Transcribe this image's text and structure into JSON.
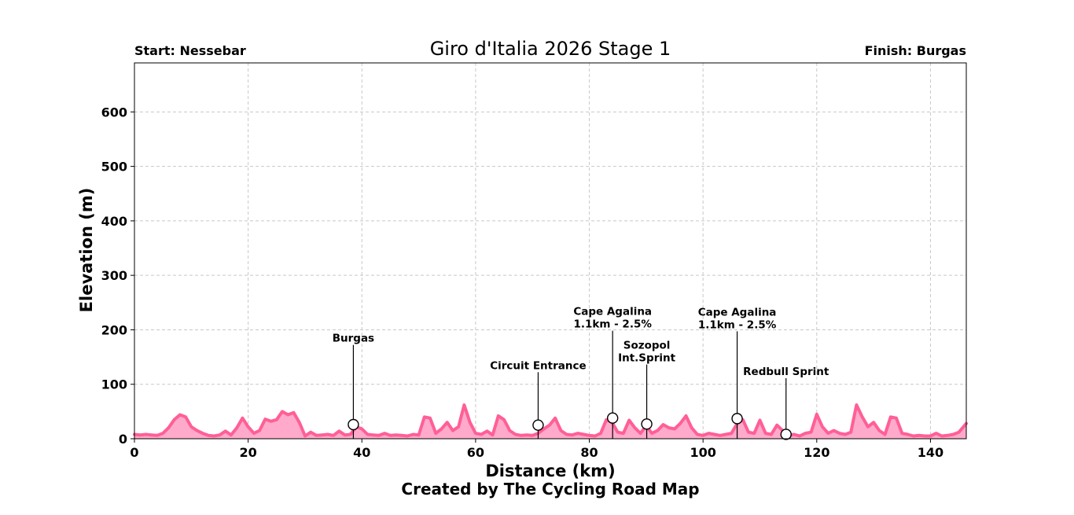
{
  "chart_data": {
    "type": "area",
    "title": "Giro d'Italia 2026 Stage 1",
    "start_label": "Start: Nessebar",
    "finish_label": "Finish: Burgas",
    "xlabel": "Distance (km)",
    "ylabel": "Elevation (m)",
    "credit": "Created by The Cycling Road Map",
    "xlim": [
      0,
      146.3
    ],
    "ylim": [
      0,
      690
    ],
    "xticks": [
      0,
      20,
      40,
      60,
      80,
      100,
      120,
      140
    ],
    "yticks": [
      0,
      100,
      200,
      300,
      400,
      500,
      600
    ],
    "grid": true,
    "colors": {
      "line": "#ff5f96",
      "fill": "#ffaacb"
    },
    "series": [
      {
        "x": [
          0,
          1,
          2,
          3,
          4,
          5,
          6,
          7,
          8,
          9,
          10,
          11,
          12,
          13,
          14,
          15,
          16,
          17,
          18,
          19,
          20,
          21,
          22,
          23,
          24,
          25,
          26,
          27,
          28,
          29,
          30,
          31,
          32,
          33,
          34,
          35,
          36,
          37,
          38,
          39,
          40,
          41,
          42,
          43,
          44,
          45,
          46,
          47,
          48,
          49,
          50,
          51,
          52,
          53,
          54,
          55,
          56,
          57,
          58,
          59,
          60,
          61,
          62,
          63,
          64,
          65,
          66,
          67,
          68,
          69,
          70,
          71,
          72,
          73,
          74,
          75,
          76,
          77,
          78,
          79,
          80,
          81,
          82,
          83,
          84,
          85,
          86,
          87,
          88,
          89,
          90,
          91,
          92,
          93,
          94,
          95,
          96,
          97,
          98,
          99,
          100,
          101,
          102,
          103,
          104,
          105,
          106,
          107,
          108,
          109,
          110,
          111,
          112,
          113,
          114,
          115,
          116,
          117,
          118,
          119,
          120,
          121,
          122,
          123,
          124,
          125,
          126,
          127,
          128,
          129,
          130,
          131,
          132,
          133,
          134,
          135,
          136,
          137,
          138,
          139,
          140,
          141,
          142,
          143,
          144,
          145,
          146.3
        ],
        "y": [
          8,
          7,
          8,
          7,
          6,
          10,
          20,
          35,
          44,
          40,
          22,
          15,
          10,
          6,
          5,
          7,
          14,
          7,
          20,
          38,
          22,
          10,
          15,
          36,
          32,
          35,
          50,
          44,
          48,
          30,
          5,
          12,
          6,
          7,
          8,
          6,
          14,
          7,
          8,
          22,
          18,
          8,
          7,
          6,
          10,
          6,
          7,
          6,
          5,
          8,
          7,
          40,
          38,
          10,
          18,
          30,
          15,
          22,
          62,
          30,
          10,
          8,
          14,
          7,
          42,
          35,
          15,
          8,
          6,
          7,
          6,
          10,
          18,
          25,
          38,
          15,
          8,
          7,
          10,
          8,
          6,
          5,
          10,
          35,
          30,
          12,
          10,
          34,
          20,
          10,
          24,
          10,
          15,
          26,
          20,
          18,
          28,
          42,
          20,
          8,
          6,
          10,
          8,
          6,
          8,
          10,
          28,
          35,
          12,
          10,
          34,
          10,
          8,
          25,
          15,
          6,
          8,
          5,
          10,
          12,
          45,
          22,
          10,
          15,
          10,
          8,
          12,
          62,
          40,
          22,
          30,
          15,
          8,
          40,
          38,
          10,
          8,
          5,
          6,
          5,
          5,
          10,
          5,
          6,
          8,
          12,
          28
        ]
      }
    ],
    "annotations": [
      {
        "label": [
          "Burgas"
        ],
        "x": 38.5,
        "y": 26,
        "text_y": 178
      },
      {
        "label": [
          "Circuit Entrance"
        ],
        "x": 71.0,
        "y": 25,
        "text_y": 128
      },
      {
        "label": [
          "Cape Agalina",
          "1.1km - 2.5%"
        ],
        "x": 84.1,
        "y": 38,
        "text_y": 204
      },
      {
        "label": [
          "Sozopol",
          "Int.Sprint"
        ],
        "x": 90.1,
        "y": 27,
        "text_y": 142
      },
      {
        "label": [
          "Cape Agalina",
          "1.1km - 2.5%"
        ],
        "x": 106.0,
        "y": 37,
        "text_y": 203
      },
      {
        "label": [
          "Redbull Sprint"
        ],
        "x": 114.6,
        "y": 8,
        "text_y": 117
      }
    ]
  }
}
